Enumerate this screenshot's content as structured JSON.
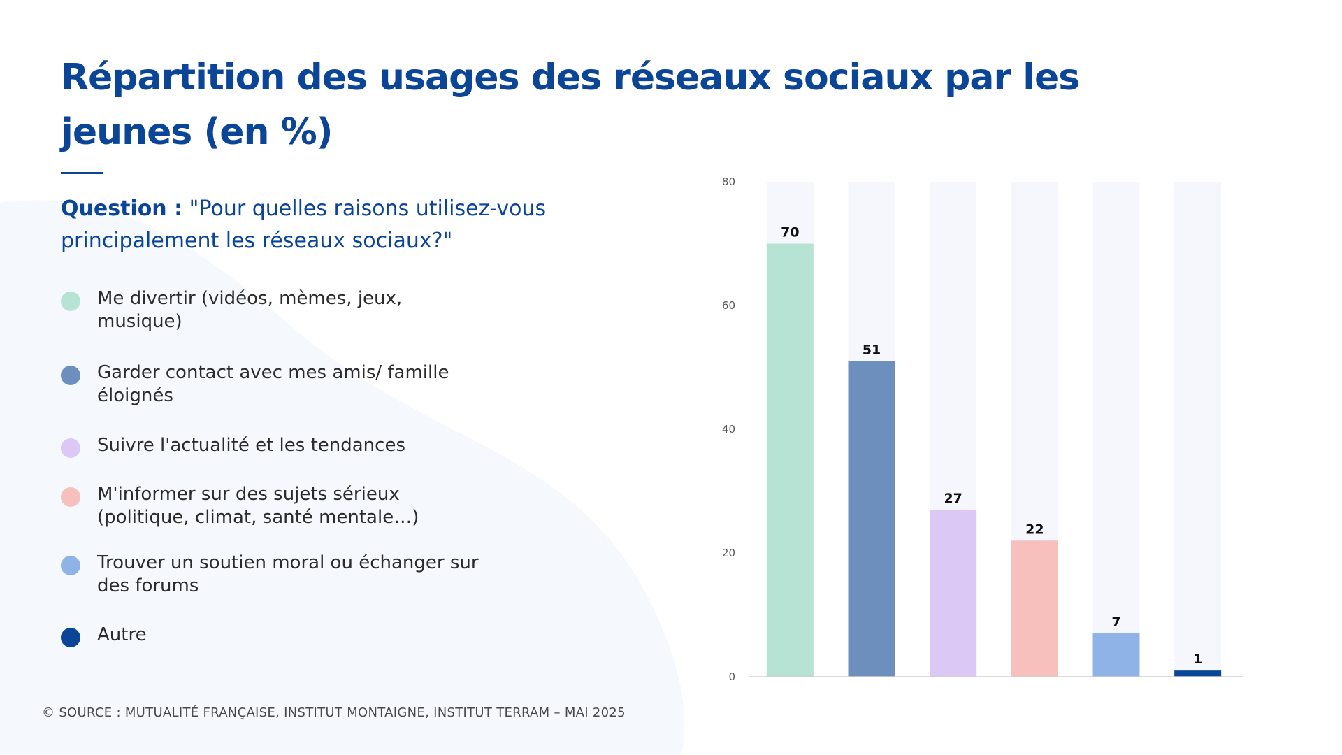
{
  "title": "Répartition des usages des réseaux sociaux par les jeunes (en %)",
  "question": {
    "label": "Question :",
    "text": "\"Pour quelles raisons utilisez-vous principalement les réseaux sociaux?\""
  },
  "legend": [
    {
      "label": "Me divertir (vidéos, mèmes, jeux, musique)",
      "color": "#b7e3d4"
    },
    {
      "label": "Garder contact avec mes amis/ famille éloignés",
      "color": "#6d8fbd"
    },
    {
      "label": "Suivre l'actualité et les tendances",
      "color": "#dcc8f4"
    },
    {
      "label": "M'informer sur des sujets sérieux (politique, climat, santé mentale…)",
      "color": "#f7c0bd"
    },
    {
      "label": "Trouver un soutien moral ou échanger sur des forums",
      "color": "#8fb3e6"
    },
    {
      "label": "Autre",
      "color": "#0b4597"
    }
  ],
  "source": "© SOURCE : MUTUALITÉ FRANÇAISE, INSTITUT MONTAIGNE, INSTITUT TERRAM – MAI 2025",
  "chart_data": {
    "type": "bar",
    "categories": [
      "Me divertir (vidéos, mèmes, jeux, musique)",
      "Garder contact avec mes amis/ famille éloignés",
      "Suivre l'actualité et les tendances",
      "M'informer sur des sujets sérieux (politique, climat, santé mentale…)",
      "Trouver un soutien moral ou échanger sur des forums",
      "Autre"
    ],
    "values": [
      70,
      51,
      27,
      22,
      7,
      1
    ],
    "colors": [
      "#b7e3d4",
      "#6d8fbd",
      "#dcc8f4",
      "#f7c0bd",
      "#8fb3e6",
      "#0b4597"
    ],
    "track_color": "#f5f7fc",
    "ylim": [
      0,
      80
    ],
    "yticks": [
      0,
      20,
      40,
      60,
      80
    ],
    "data_labels": true,
    "grid": false,
    "legend_position": "left"
  }
}
